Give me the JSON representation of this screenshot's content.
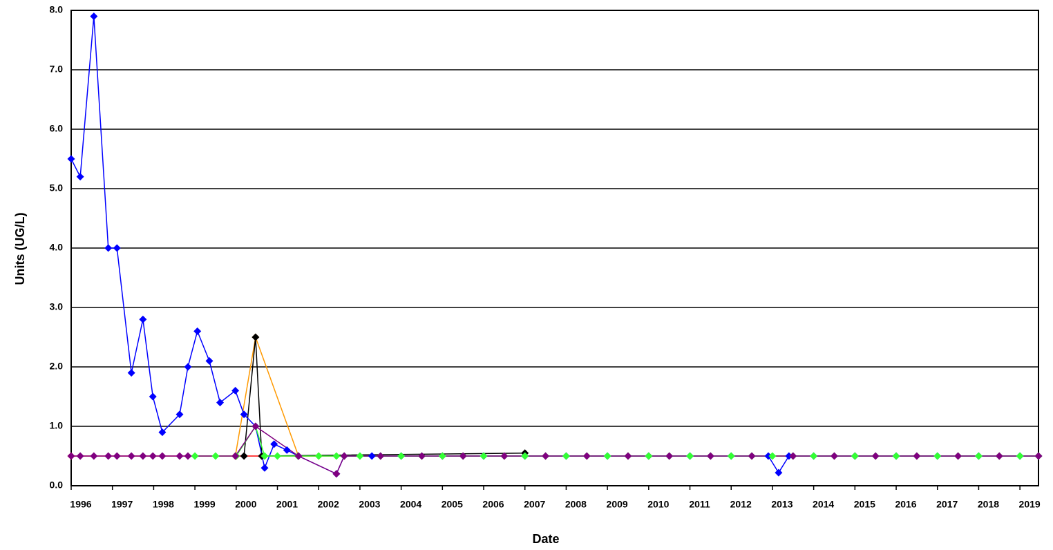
{
  "chart_data": {
    "type": "line",
    "x_label": "Date",
    "y_label": "Units (UG/L)",
    "xlim": [
      1996,
      2019.45
    ],
    "xticks": [
      1996,
      1997,
      1998,
      1999,
      2000,
      2001,
      2002,
      2003,
      2004,
      2005,
      2006,
      2007,
      2008,
      2009,
      2010,
      2011,
      2012,
      2013,
      2014,
      2015,
      2016,
      2017,
      2018,
      2019
    ],
    "ylim": [
      0,
      8
    ],
    "yticks": [
      {
        "value": 0,
        "label": "0.0"
      },
      {
        "value": 1,
        "label": "1.0"
      },
      {
        "value": 2,
        "label": "2.0"
      },
      {
        "value": 3,
        "label": "3.0"
      },
      {
        "value": 4,
        "label": "4.0"
      },
      {
        "value": 5,
        "label": "5.0"
      },
      {
        "value": 6,
        "label": "6.0"
      },
      {
        "value": 7,
        "label": "7.0"
      },
      {
        "value": 8,
        "label": "8.0"
      }
    ],
    "grid": true,
    "series": [
      {
        "color": "#ff0000",
        "x": [
          1996.0,
          2000.0,
          2005.0,
          2010.0,
          2015.0,
          2019.45
        ],
        "values": [
          0.5,
          0.5,
          0.5,
          0.5,
          0.5,
          0.5
        ]
      },
      {
        "color": "#ff9900",
        "x": [
          1999.98,
          2000.47,
          2001.51,
          2002.0
        ],
        "values": [
          0.5,
          2.5,
          0.5,
          0.5
        ]
      },
      {
        "color": "#000000",
        "x": [
          2000.19,
          2000.47,
          2000.62,
          2007.0
        ],
        "values": [
          0.5,
          2.5,
          0.5,
          0.55
        ]
      },
      {
        "color": "#0000ff",
        "x": [
          1996.0,
          1996.22,
          1996.55,
          1996.9,
          1997.11,
          1997.46,
          1997.74,
          1997.98,
          1998.21,
          1998.63,
          1998.83,
          1999.06,
          1999.35,
          1999.61,
          1999.98,
          2000.19,
          2000.47,
          2000.69,
          2000.92,
          2001.23,
          2001.51,
          2002.43,
          2002.62,
          2003.29,
          2004.0,
          2005.0,
          2006.0,
          2007.0,
          2008.0,
          2009.0,
          2010.0,
          2011.0,
          2012.0,
          2012.9,
          2013.15,
          2013.4,
          2014.0,
          2015.0,
          2016.0,
          2017.0,
          2018.0,
          2019.0,
          2019.45
        ],
        "values": [
          5.5,
          5.2,
          7.9,
          4.0,
          4.0,
          1.9,
          2.8,
          1.5,
          0.9,
          1.2,
          2.0,
          2.6,
          2.1,
          1.4,
          1.6,
          1.2,
          1.0,
          0.3,
          0.7,
          0.6,
          0.5,
          0.2,
          0.5,
          0.5,
          0.5,
          0.5,
          0.5,
          0.5,
          0.5,
          0.5,
          0.5,
          0.5,
          0.5,
          0.5,
          0.22,
          0.5,
          0.5,
          0.5,
          0.5,
          0.5,
          0.5,
          0.5,
          0.5
        ]
      },
      {
        "color": "#33ff33",
        "x": [
          1999.0,
          1999.5,
          2000.0,
          2000.47,
          2000.69,
          2001.0,
          2001.5,
          2002.0,
          2002.43,
          2002.62,
          2003.0,
          2003.5,
          2004.0,
          2004.5,
          2005.0,
          2005.5,
          2006.0,
          2006.5,
          2007.0,
          2007.5,
          2008.0,
          2008.5,
          2009.0,
          2009.5,
          2010.0,
          2010.5,
          2011.0,
          2011.5,
          2012.0,
          2012.5,
          2013.0,
          2013.5,
          2014.0,
          2014.5,
          2015.0,
          2015.5,
          2016.0,
          2016.5,
          2017.0,
          2017.5,
          2018.0,
          2018.5,
          2019.0,
          2019.45
        ],
        "values": [
          0.5,
          0.5,
          0.5,
          1.0,
          0.5,
          0.5,
          0.5,
          0.5,
          0.5,
          0.5,
          0.5,
          0.5,
          0.5,
          0.5,
          0.5,
          0.5,
          0.5,
          0.5,
          0.5,
          0.5,
          0.5,
          0.5,
          0.5,
          0.5,
          0.5,
          0.5,
          0.5,
          0.5,
          0.5,
          0.5,
          0.5,
          0.5,
          0.5,
          0.5,
          0.5,
          0.5,
          0.5,
          0.5,
          0.5,
          0.5,
          0.5,
          0.5,
          0.5,
          0.5
        ]
      },
      {
        "color": "#800080",
        "x": [
          1996.0,
          1996.22,
          1996.55,
          1996.9,
          1997.11,
          1997.46,
          1997.74,
          1997.98,
          1998.21,
          1998.63,
          1998.83,
          1999.98,
          2000.47,
          2001.51,
          2002.43,
          2002.62,
          2003.5,
          2004.5,
          2005.5,
          2006.5,
          2007.5,
          2008.5,
          2009.5,
          2010.5,
          2011.5,
          2012.5,
          2013.5,
          2014.5,
          2015.5,
          2016.5,
          2017.5,
          2018.5,
          2019.45
        ],
        "values": [
          0.5,
          0.5,
          0.5,
          0.5,
          0.5,
          0.5,
          0.5,
          0.5,
          0.5,
          0.5,
          0.5,
          0.5,
          1.0,
          0.5,
          0.2,
          0.5,
          0.5,
          0.5,
          0.5,
          0.5,
          0.5,
          0.5,
          0.5,
          0.5,
          0.5,
          0.5,
          0.5,
          0.5,
          0.5,
          0.5,
          0.5,
          0.5,
          0.5
        ]
      }
    ]
  }
}
